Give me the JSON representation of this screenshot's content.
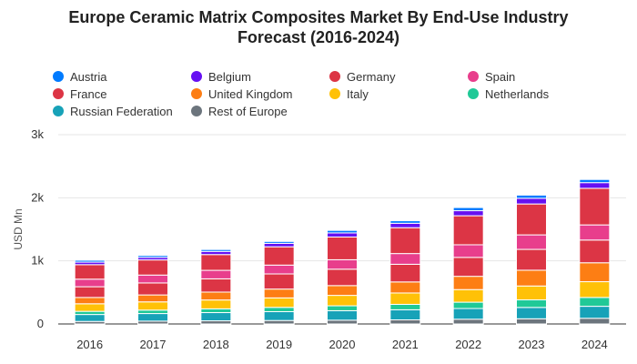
{
  "chart_data": {
    "type": "bar",
    "stacked": true,
    "title_line1": "Europe Ceramic Matrix Composites Market By End-Use Industry",
    "title_line2": "Forecast (2016-2024)",
    "ylabel": "USD Mn",
    "xlabel": "",
    "ylim": [
      0,
      3000
    ],
    "yticks": [
      0,
      1000,
      2000,
      3000
    ],
    "ytick_labels": [
      "0",
      "1k",
      "2k",
      "3k"
    ],
    "grid": true,
    "legend_position": "top",
    "categories": [
      "2016",
      "2017",
      "2018",
      "2019",
      "2020",
      "2021",
      "2022",
      "2023",
      "2024"
    ],
    "series": [
      {
        "name": "Rest of Europe",
        "color": "#6c757d",
        "values": [
          40,
          45,
          50,
          55,
          60,
          65,
          75,
          82,
          90
        ]
      },
      {
        "name": "Russian Federation",
        "color": "#17a2b8",
        "values": [
          110,
          120,
          130,
          140,
          150,
          160,
          170,
          180,
          190
        ]
      },
      {
        "name": "Netherlands",
        "color": "#20c997",
        "values": [
          50,
          55,
          60,
          68,
          78,
          86,
          100,
          120,
          140
        ]
      },
      {
        "name": "Italy",
        "color": "#ffc107",
        "values": [
          120,
          130,
          140,
          150,
          165,
          180,
          200,
          220,
          250
        ]
      },
      {
        "name": "United Kingdom",
        "color": "#fd7e14",
        "values": [
          100,
          110,
          125,
          140,
          155,
          175,
          210,
          250,
          300
        ]
      },
      {
        "name": "France",
        "color": "#dc3545",
        "values": [
          170,
          190,
          210,
          240,
          260,
          280,
          300,
          330,
          360
        ]
      },
      {
        "name": "Spain",
        "color": "#e83e8c",
        "values": [
          120,
          125,
          135,
          140,
          150,
          170,
          200,
          230,
          240
        ]
      },
      {
        "name": "Germany",
        "color": "#dc3545",
        "values": [
          230,
          240,
          250,
          290,
          360,
          410,
          460,
          490,
          580
        ]
      },
      {
        "name": "Belgium",
        "color": "#6610f2",
        "values": [
          40,
          40,
          50,
          55,
          65,
          70,
          80,
          90,
          90
        ]
      },
      {
        "name": "Austria",
        "color": "#007bff",
        "values": [
          30,
          30,
          30,
          30,
          40,
          40,
          50,
          50,
          50
        ]
      }
    ]
  },
  "legend": [
    {
      "name": "Austria",
      "color": "#007bff"
    },
    {
      "name": "Belgium",
      "color": "#6610f2"
    },
    {
      "name": "Germany",
      "color": "#dc3545"
    },
    {
      "name": "Spain",
      "color": "#e83e8c"
    },
    {
      "name": "France",
      "color": "#dc3545"
    },
    {
      "name": "United Kingdom",
      "color": "#fd7e14"
    },
    {
      "name": "Italy",
      "color": "#ffc107"
    },
    {
      "name": "Netherlands",
      "color": "#20c997"
    },
    {
      "name": "Russian Federation",
      "color": "#17a2b8"
    },
    {
      "name": "Rest of Europe",
      "color": "#6c757d"
    }
  ]
}
